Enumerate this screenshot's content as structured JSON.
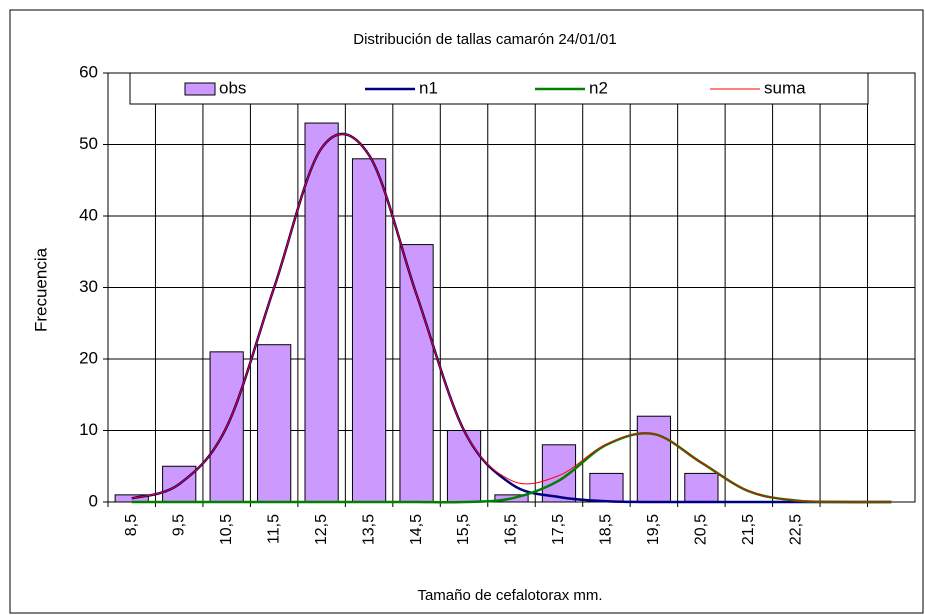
{
  "chart_data": {
    "type": "bar",
    "title": "Distribución de tallas camarón 24/01/01",
    "y_label": "Frecuencia",
    "x_label": "Tamaño de cefalotorax mm.",
    "categories": [
      "8,5",
      "9,5",
      "10,5",
      "11,5",
      "12,5",
      "13,5",
      "14,5",
      "15,5",
      "16,5",
      "17,5",
      "18,5",
      "19,5",
      "20,5",
      "21,5",
      "22,5",
      null,
      null
    ],
    "series": [
      {
        "name": "obs",
        "type": "bar",
        "color": "#cc99ff",
        "values": [
          1,
          5,
          21,
          22,
          53,
          48,
          36,
          10,
          1,
          8,
          4,
          12,
          4,
          null,
          null,
          null,
          null
        ]
      },
      {
        "name": "n1",
        "type": "line",
        "color": "#000080",
        "values": [
          0.5,
          2.5,
          10.5,
          30,
          49.5,
          48.5,
          29,
          10,
          2.5,
          0.7,
          0.1,
          0,
          0,
          0,
          0,
          0,
          0
        ]
      },
      {
        "name": "n2",
        "type": "line",
        "color": "#008000",
        "values": [
          0,
          0,
          0,
          0,
          0,
          0,
          0,
          0,
          0.5,
          3,
          8,
          9.5,
          5.5,
          1.5,
          0.2,
          0,
          0
        ]
      },
      {
        "name": "suma",
        "type": "line",
        "color": "#ff0000",
        "values": [
          0.5,
          2.5,
          10.5,
          30,
          49.5,
          48.5,
          29,
          10,
          3,
          3.7,
          8.1,
          9.5,
          5.5,
          1.5,
          0.2,
          0,
          0
        ]
      }
    ],
    "ylim": [
      0,
      60
    ],
    "yticks": [
      0,
      10,
      20,
      30,
      40,
      50,
      60
    ],
    "grid": true,
    "legend": "top"
  }
}
